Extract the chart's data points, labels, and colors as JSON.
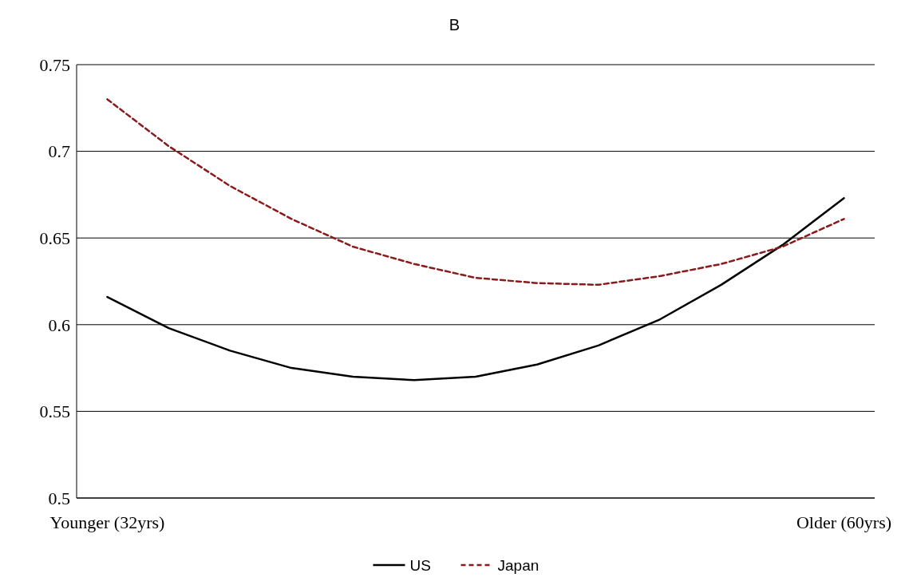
{
  "chart_data": {
    "type": "line",
    "title": "B",
    "categories": [
      "Younger (32yrs)",
      null,
      null,
      null,
      null,
      null,
      null,
      null,
      null,
      null,
      null,
      null,
      "Older (60yrs)"
    ],
    "series": [
      {
        "name": "US",
        "color": "#000000",
        "line_style": "solid",
        "values": [
          0.616,
          0.598,
          0.585,
          0.575,
          0.57,
          0.568,
          0.57,
          0.577,
          0.588,
          0.603,
          0.623,
          0.646,
          0.673
        ]
      },
      {
        "name": "Japan",
        "color": "#8b1a1a",
        "line_style": "dashed",
        "values": [
          0.73,
          0.703,
          0.68,
          0.661,
          0.645,
          0.635,
          0.627,
          0.624,
          0.623,
          0.628,
          0.635,
          0.645,
          0.661
        ]
      }
    ],
    "ylim": [
      0.5,
      0.75
    ],
    "yticks": [
      0.5,
      0.55,
      0.6,
      0.65,
      0.7,
      0.75
    ],
    "grid": "y",
    "legend": "bottom",
    "marker": "none"
  }
}
